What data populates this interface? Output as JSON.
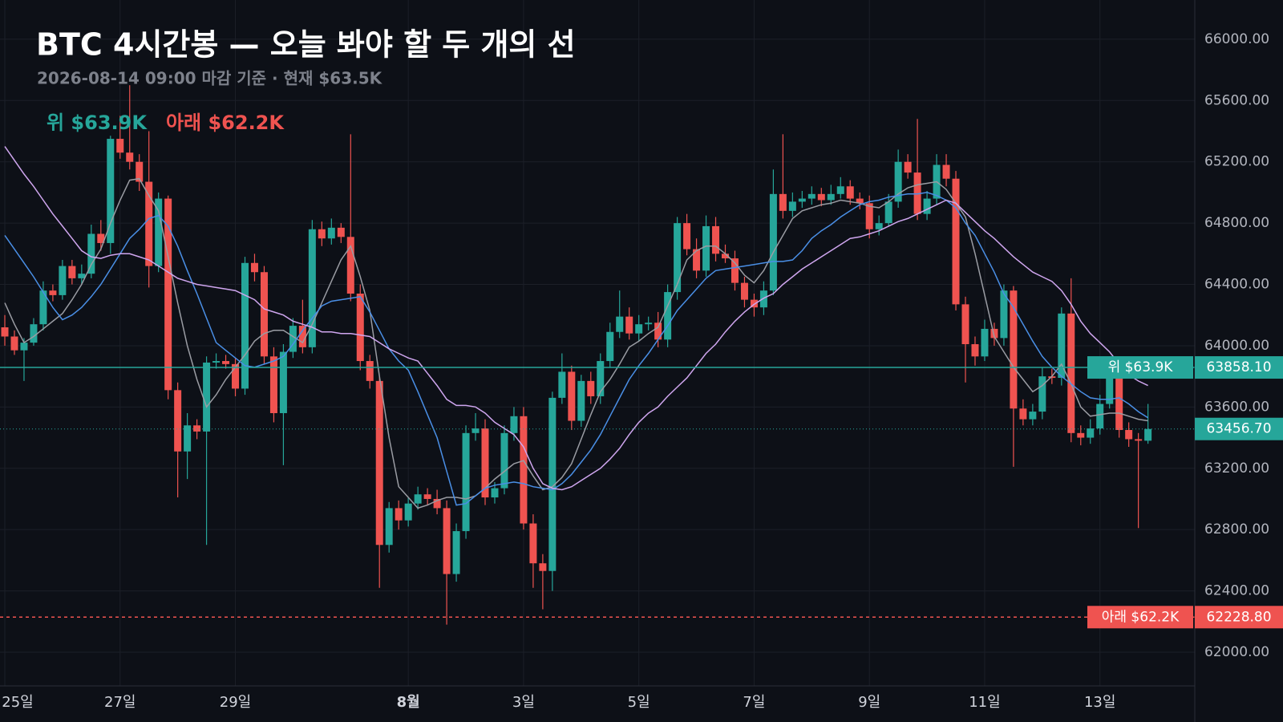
{
  "chart_data": {
    "type": "candlestick",
    "title": "BTC 4시간봉 — 오늘 봐야 할 두 개의 선",
    "subtitle": "2026-08-14 09:00 마감 기준 · 현재 $63.5K",
    "categories": [
      "25일",
      null,
      null,
      null,
      null,
      null,
      null,
      null,
      null,
      null,
      null,
      null,
      "27일",
      null,
      null,
      null,
      null,
      null,
      null,
      null,
      null,
      null,
      null,
      null,
      "29일",
      null,
      null,
      null,
      null,
      null,
      null,
      null,
      null,
      null,
      null,
      null,
      null,
      null,
      null,
      null,
      null,
      null,
      "8월",
      null,
      null,
      null,
      null,
      null,
      null,
      null,
      null,
      null,
      null,
      null,
      "3일",
      null,
      null,
      null,
      null,
      null,
      null,
      null,
      null,
      null,
      null,
      null,
      "5일",
      null,
      null,
      null,
      null,
      null,
      null,
      null,
      null,
      null,
      null,
      null,
      "7일",
      null,
      null,
      null,
      null,
      null,
      null,
      null,
      null,
      null,
      null,
      null,
      "9일",
      null,
      null,
      null,
      null,
      null,
      null,
      null,
      null,
      null,
      null,
      null,
      "11일",
      null,
      null,
      null,
      null,
      null,
      null,
      null,
      null,
      null,
      null,
      null,
      "13일",
      null,
      null,
      null,
      null,
      null
    ],
    "open": [
      64120,
      64060,
      63970,
      64020,
      64140,
      64360,
      64330,
      64520,
      64440,
      64470,
      64730,
      64670,
      65350,
      65260,
      65200,
      65070,
      64520,
      64960,
      63710,
      63310,
      63480,
      63440,
      63890,
      63900,
      63880,
      63720,
      64540,
      64480,
      63930,
      63560,
      63960,
      64130,
      63990,
      64760,
      64700,
      64770,
      64710,
      64340,
      63900,
      63770,
      62700,
      62940,
      62860,
      62970,
      63030,
      63000,
      62940,
      62510,
      62790,
      63430,
      63460,
      63010,
      63070,
      63430,
      63540,
      62840,
      62580,
      62530,
      63660,
      63830,
      63510,
      63770,
      63670,
      63900,
      64090,
      64190,
      64080,
      64140,
      64150,
      64040,
      64350,
      64800,
      64630,
      64490,
      64780,
      64600,
      64570,
      64410,
      64300,
      64250,
      64360,
      64990,
      64880,
      64940,
      64960,
      64990,
      64950,
      64990,
      65040,
      64960,
      64930,
      64760,
      64800,
      64940,
      65200,
      65130,
      64860,
      64960,
      65180,
      65090,
      64270,
      64010,
      63930,
      64110,
      64050,
      64360,
      63590,
      63520,
      63570,
      63800,
      63790,
      64210,
      63430,
      63400,
      63460,
      63620,
      63860,
      63450,
      63390,
      63380
    ],
    "high": [
      64200,
      64100,
      64050,
      64180,
      64420,
      64400,
      64560,
      64560,
      64530,
      64790,
      64820,
      65370,
      65500,
      65700,
      65250,
      65400,
      65000,
      64980,
      63760,
      63560,
      63520,
      63930,
      63950,
      63940,
      63920,
      64580,
      64600,
      64520,
      63990,
      64010,
      64180,
      64300,
      64820,
      64810,
      64830,
      64800,
      65380,
      64400,
      63940,
      63800,
      62980,
      62990,
      63010,
      63080,
      63070,
      63060,
      62990,
      62840,
      63480,
      63560,
      63520,
      63110,
      63480,
      63600,
      63600,
      62900,
      62640,
      63700,
      63950,
      63870,
      63810,
      63830,
      63950,
      64150,
      64360,
      64250,
      64200,
      64190,
      64220,
      64400,
      64840,
      64860,
      64700,
      64850,
      64840,
      64660,
      64620,
      64450,
      64340,
      64420,
      65150,
      65380,
      65000,
      65010,
      65040,
      65030,
      65050,
      65100,
      65080,
      65000,
      64980,
      64850,
      64990,
      65280,
      65250,
      65480,
      65010,
      65250,
      65250,
      65140,
      64320,
      64060,
      64170,
      64150,
      64400,
      64390,
      63650,
      63620,
      63860,
      63850,
      64250,
      64440,
      63480,
      63520,
      63680,
      63930,
      63900,
      63500,
      63430,
      63620
    ],
    "low": [
      64000,
      63940,
      63770,
      64000,
      64100,
      64290,
      64300,
      64400,
      64400,
      64440,
      64620,
      64600,
      65220,
      65150,
      65010,
      64380,
      64480,
      63650,
      63010,
      63130,
      63390,
      62700,
      63850,
      63850,
      63670,
      63680,
      64420,
      63880,
      63500,
      63220,
      63920,
      63950,
      63950,
      64650,
      64660,
      64670,
      64290,
      63840,
      63720,
      62420,
      62650,
      62800,
      62820,
      62930,
      62960,
      62900,
      62180,
      62460,
      62740,
      63380,
      62960,
      62970,
      63030,
      63380,
      62800,
      62420,
      62280,
      62400,
      63620,
      63450,
      63470,
      63620,
      63620,
      63860,
      64050,
      64040,
      64030,
      64100,
      63990,
      63990,
      64300,
      64590,
      64440,
      64450,
      64550,
      64540,
      64360,
      64250,
      64190,
      64200,
      64330,
      64830,
      64840,
      64900,
      64920,
      64910,
      64920,
      64960,
      64920,
      64890,
      64700,
      64720,
      64780,
      64900,
      65090,
      64820,
      64820,
      64920,
      65040,
      64230,
      63760,
      63870,
      63900,
      64000,
      64000,
      63210,
      63480,
      63480,
      63520,
      63750,
      63740,
      63370,
      63350,
      63360,
      63420,
      63590,
      63400,
      63340,
      62810,
      63360
    ],
    "close": [
      64060,
      63970,
      64020,
      64140,
      64360,
      64330,
      64520,
      64440,
      64470,
      64730,
      64670,
      65350,
      65260,
      65200,
      65070,
      64520,
      64960,
      63710,
      63310,
      63480,
      63440,
      63890,
      63900,
      63880,
      63720,
      64540,
      64480,
      63930,
      63560,
      63960,
      64130,
      63990,
      64760,
      64700,
      64770,
      64710,
      64340,
      63900,
      63770,
      62700,
      62940,
      62860,
      62970,
      63030,
      63000,
      62940,
      62510,
      62790,
      63430,
      63460,
      63010,
      63070,
      63430,
      63540,
      62840,
      62580,
      62530,
      63660,
      63830,
      63510,
      63770,
      63670,
      63900,
      64090,
      64190,
      64080,
      64140,
      64150,
      64040,
      64350,
      64800,
      64630,
      64490,
      64780,
      64600,
      64570,
      64410,
      64300,
      64250,
      64360,
      64990,
      64880,
      64940,
      64960,
      64990,
      64950,
      64990,
      65040,
      64960,
      64930,
      64760,
      64800,
      64940,
      65200,
      65130,
      64860,
      64960,
      65180,
      65090,
      64270,
      64010,
      63930,
      64110,
      64050,
      64360,
      63590,
      63520,
      63570,
      63800,
      63790,
      64210,
      63430,
      63400,
      63460,
      63620,
      63860,
      63450,
      63390,
      63380,
      63456.7
    ],
    "up_color": "#26a69a",
    "down_color": "#ef5350",
    "series": [
      {
        "color": "#9a9ca3",
        "values": [
          64280,
          64140,
          64020,
          64060,
          64110,
          64160,
          64210,
          64300,
          64400,
          64530,
          64630,
          64800,
          64950,
          65080,
          65090,
          64980,
          64880,
          64580,
          64280,
          64000,
          63780,
          63600,
          63680,
          63780,
          63860,
          63940,
          64030,
          64080,
          64100,
          64100,
          64060,
          64020,
          64140,
          64280,
          64420,
          64560,
          64650,
          64450,
          64230,
          63800,
          63400,
          63080,
          63010,
          62940,
          62960,
          62990,
          63010,
          63010,
          63000,
          63020,
          63070,
          63130,
          63180,
          63230,
          63250,
          63150,
          63060,
          63080,
          63140,
          63230,
          63390,
          63550,
          63700,
          63780,
          63880,
          63990,
          64030,
          64080,
          64120,
          64260,
          64400,
          64560,
          64620,
          64650,
          64650,
          64600,
          64540,
          64460,
          64410,
          64490,
          64610,
          64720,
          64830,
          64880,
          64900,
          64920,
          64930,
          64950,
          64940,
          64930,
          64910,
          64900,
          64940,
          64990,
          65030,
          65050,
          65060,
          65070,
          65020,
          64930,
          64840,
          64600,
          64330,
          64060,
          63960,
          63860,
          63780,
          63700,
          63740,
          63800,
          63880,
          63750,
          63600,
          63540,
          63550,
          63560,
          63560,
          63540,
          63520,
          63510
        ]
      },
      {
        "color": "#4a8fe6",
        "values": [
          64720,
          64630,
          64540,
          64450,
          64350,
          64250,
          64170,
          64200,
          64250,
          64320,
          64400,
          64500,
          64600,
          64700,
          64760,
          64830,
          64850,
          64780,
          64650,
          64490,
          64340,
          64180,
          64020,
          63970,
          63920,
          63870,
          63860,
          63880,
          63900,
          63930,
          64010,
          64100,
          64180,
          64260,
          64290,
          64300,
          64310,
          64320,
          64220,
          64100,
          63980,
          63900,
          63840,
          63700,
          63550,
          63400,
          63180,
          62960,
          62970,
          63020,
          63070,
          63090,
          63100,
          63110,
          63100,
          63080,
          63070,
          63060,
          63100,
          63160,
          63240,
          63320,
          63420,
          63540,
          63660,
          63780,
          63870,
          63950,
          64040,
          64130,
          64230,
          64300,
          64370,
          64440,
          64490,
          64500,
          64510,
          64520,
          64530,
          64540,
          64550,
          64550,
          64560,
          64620,
          64700,
          64750,
          64790,
          64840,
          64880,
          64920,
          64940,
          64950,
          64970,
          64980,
          64990,
          64990,
          65000,
          64980,
          64950,
          64900,
          64800,
          64720,
          64600,
          64480,
          64340,
          64250,
          64140,
          64030,
          63930,
          63860,
          63800,
          63750,
          63700,
          63660,
          63650,
          63650,
          63660,
          63620,
          63570,
          63530
        ]
      },
      {
        "color": "#cfa6ef",
        "values": [
          65300,
          65210,
          65120,
          65040,
          64950,
          64860,
          64780,
          64700,
          64620,
          64580,
          64570,
          64590,
          64600,
          64600,
          64580,
          64560,
          64520,
          64480,
          64440,
          64420,
          64400,
          64390,
          64380,
          64370,
          64360,
          64330,
          64300,
          64240,
          64220,
          64200,
          64160,
          64140,
          64120,
          64090,
          64090,
          64080,
          64080,
          64070,
          64060,
          64020,
          63980,
          63950,
          63920,
          63900,
          63820,
          63740,
          63650,
          63610,
          63610,
          63600,
          63560,
          63500,
          63460,
          63420,
          63340,
          63200,
          63100,
          63070,
          63060,
          63080,
          63120,
          63160,
          63200,
          63260,
          63330,
          63420,
          63500,
          63560,
          63600,
          63670,
          63730,
          63790,
          63870,
          63950,
          64010,
          64090,
          64160,
          64220,
          64270,
          64310,
          64340,
          64400,
          64450,
          64500,
          64540,
          64580,
          64620,
          64660,
          64700,
          64710,
          64730,
          64750,
          64780,
          64810,
          64830,
          64860,
          64890,
          64920,
          64950,
          64930,
          64870,
          64810,
          64750,
          64700,
          64640,
          64580,
          64530,
          64480,
          64450,
          64420,
          64360,
          64270,
          64160,
          64080,
          64020,
          63960,
          63880,
          63810,
          63770,
          63740
        ]
      }
    ],
    "levels": [
      {
        "name": "위 $63.9K",
        "value": 63858.1,
        "value_label": "63858.10",
        "color": "#26a69a",
        "style": "solid"
      },
      {
        "name": "아래 $62.2K",
        "value": 62228.8,
        "value_label": "62228.80",
        "color": "#ef5350",
        "style": "dashed"
      }
    ],
    "last": {
      "value": 63456.7,
      "label": "63456.70",
      "color": "#26a69a"
    },
    "ylim": [
      61780,
      66256
    ],
    "yticks": [
      {
        "value": 62000,
        "label": "62000.00"
      },
      {
        "value": 62400,
        "label": "62400.00"
      },
      {
        "value": 62800,
        "label": "62800.00"
      },
      {
        "value": 63200,
        "label": "63200.00"
      },
      {
        "value": 63600,
        "label": "63600.00"
      },
      {
        "value": 64000,
        "label": "64000.00"
      },
      {
        "value": 64400,
        "label": "64400.00"
      },
      {
        "value": 64800,
        "label": "64800.00"
      },
      {
        "value": 65200,
        "label": "65200.00"
      },
      {
        "value": 65600,
        "label": "65600.00"
      },
      {
        "value": 66000,
        "label": "66000.00"
      }
    ],
    "grid": true
  }
}
